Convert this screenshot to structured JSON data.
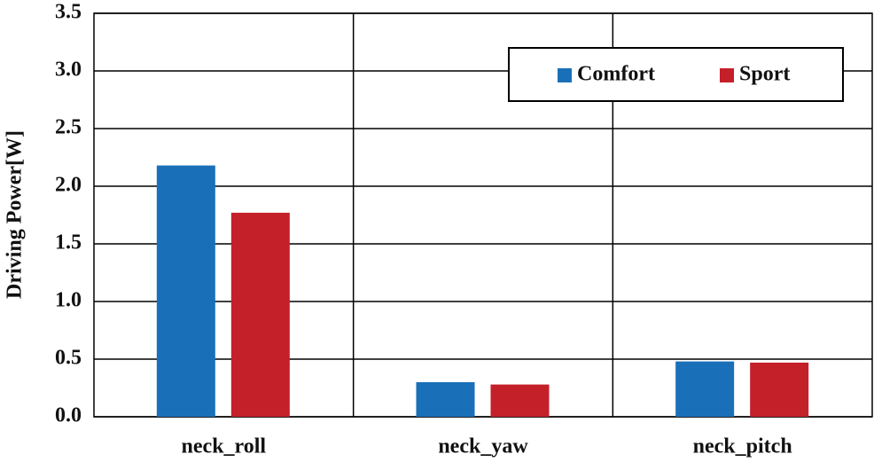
{
  "chart_data": {
    "type": "bar",
    "ylabel": "Driving Power[W]",
    "categories": [
      "neck_roll",
      "neck_yaw",
      "neck_pitch"
    ],
    "series": [
      {
        "name": "Comfort",
        "color": "#1a70b8",
        "values": [
          2.18,
          0.3,
          0.48
        ]
      },
      {
        "name": "Sport",
        "color": "#c4202a",
        "values": [
          1.77,
          0.28,
          0.47
        ]
      }
    ],
    "ylim": [
      0,
      3.5
    ],
    "yticks": [
      {
        "value": 0,
        "label": "0.0"
      },
      0.5,
      {
        "value": 1,
        "label": "1.0"
      },
      1.5,
      {
        "value": 2,
        "label": "2.0"
      },
      2.5,
      {
        "value": 3,
        "label": "3.0"
      },
      3.5
    ],
    "grid": true,
    "legend": "upper right"
  }
}
